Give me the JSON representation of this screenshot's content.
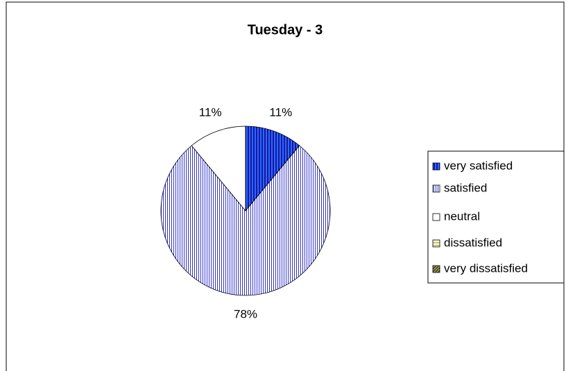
{
  "chart_data": {
    "type": "pie",
    "title": "Tuesday - 3",
    "categories": [
      "very satisfied",
      "satisfied",
      "neutral",
      "dissatisfied",
      "very dissatisfied"
    ],
    "values": [
      11,
      78,
      11,
      0,
      0
    ],
    "value_labels": [
      "11%",
      "78%",
      "11%",
      null,
      null
    ],
    "colors": [
      "#3366ff",
      "#ffffff",
      "#ffffff",
      "#ffffcc",
      "#999966"
    ],
    "legend": "right"
  }
}
